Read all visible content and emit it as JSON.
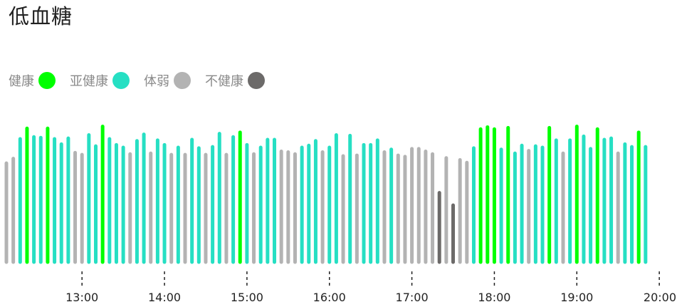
{
  "title": "低血糖",
  "legend": [
    {
      "label": "健康",
      "color": "#00ff00"
    },
    {
      "label": "亚健康",
      "color": "#26dfc3"
    },
    {
      "label": "体弱",
      "color": "#b3b3b3"
    },
    {
      "label": "不健康",
      "color": "#6c6a69"
    }
  ],
  "chart_data": {
    "type": "bar",
    "x_ticks": [
      "13:00",
      "14:00",
      "15:00",
      "16:00",
      "17:00",
      "18:00",
      "19:00",
      "20:00"
    ],
    "x_range": [
      "12:05",
      "20:02"
    ],
    "categories": [
      "健康",
      "亚健康",
      "体弱",
      "不健康"
    ],
    "bars": [
      {
        "time": "12:05",
        "value": 138,
        "status": "体弱"
      },
      {
        "time": "12:10",
        "value": 145,
        "status": "体弱"
      },
      {
        "time": "12:15",
        "value": 175,
        "status": "亚健康"
      },
      {
        "time": "12:20",
        "value": 191,
        "status": "健康"
      },
      {
        "time": "12:25",
        "value": 178,
        "status": "亚健康"
      },
      {
        "time": "12:30",
        "value": 177,
        "status": "亚健康"
      },
      {
        "time": "12:35",
        "value": 191,
        "status": "健康"
      },
      {
        "time": "12:40",
        "value": 175,
        "status": "亚健康"
      },
      {
        "time": "12:45",
        "value": 167,
        "status": "亚健康"
      },
      {
        "time": "12:50",
        "value": 176,
        "status": "亚健康"
      },
      {
        "time": "12:55",
        "value": 154,
        "status": "体弱"
      },
      {
        "time": "13:00",
        "value": 151,
        "status": "体弱"
      },
      {
        "time": "13:05",
        "value": 181,
        "status": "亚健康"
      },
      {
        "time": "13:10",
        "value": 164,
        "status": "亚健康"
      },
      {
        "time": "13:15",
        "value": 194,
        "status": "健康"
      },
      {
        "time": "13:20",
        "value": 175,
        "status": "亚健康"
      },
      {
        "time": "13:25",
        "value": 166,
        "status": "亚健康"
      },
      {
        "time": "13:30",
        "value": 162,
        "status": "亚健康"
      },
      {
        "time": "13:35",
        "value": 152,
        "status": "体弱"
      },
      {
        "time": "13:40",
        "value": 172,
        "status": "亚健康"
      },
      {
        "time": "13:45",
        "value": 182,
        "status": "亚健康"
      },
      {
        "time": "13:50",
        "value": 153,
        "status": "体弱"
      },
      {
        "time": "13:55",
        "value": 173,
        "status": "亚健康"
      },
      {
        "time": "14:00",
        "value": 166,
        "status": "亚健康"
      },
      {
        "time": "14:05",
        "value": 151,
        "status": "体弱"
      },
      {
        "time": "14:10",
        "value": 162,
        "status": "亚健康"
      },
      {
        "time": "14:15",
        "value": 151,
        "status": "体弱"
      },
      {
        "time": "14:20",
        "value": 174,
        "status": "亚健康"
      },
      {
        "time": "14:25",
        "value": 161,
        "status": "亚健康"
      },
      {
        "time": "14:30",
        "value": 151,
        "status": "体弱"
      },
      {
        "time": "14:35",
        "value": 163,
        "status": "亚健康"
      },
      {
        "time": "14:40",
        "value": 183,
        "status": "亚健康"
      },
      {
        "time": "14:45",
        "value": 151,
        "status": "体弱"
      },
      {
        "time": "14:50",
        "value": 178,
        "status": "亚健康"
      },
      {
        "time": "14:55",
        "value": 185,
        "status": "健康"
      },
      {
        "time": "15:00",
        "value": 166,
        "status": "亚健康"
      },
      {
        "time": "15:05",
        "value": 152,
        "status": "体弱"
      },
      {
        "time": "15:10",
        "value": 162,
        "status": "亚健康"
      },
      {
        "time": "15:15",
        "value": 174,
        "status": "亚健康"
      },
      {
        "time": "15:20",
        "value": 174,
        "status": "亚健康"
      },
      {
        "time": "15:25",
        "value": 156,
        "status": "体弱"
      },
      {
        "time": "15:30",
        "value": 155,
        "status": "体弱"
      },
      {
        "time": "15:35",
        "value": 152,
        "status": "体弱"
      },
      {
        "time": "15:40",
        "value": 162,
        "status": "亚健康"
      },
      {
        "time": "15:45",
        "value": 165,
        "status": "亚健康"
      },
      {
        "time": "15:50",
        "value": 172,
        "status": "亚健康"
      },
      {
        "time": "15:55",
        "value": 155,
        "status": "体弱"
      },
      {
        "time": "16:00",
        "value": 162,
        "status": "亚健康"
      },
      {
        "time": "16:05",
        "value": 181,
        "status": "亚健康"
      },
      {
        "time": "16:10",
        "value": 149,
        "status": "体弱"
      },
      {
        "time": "16:15",
        "value": 180,
        "status": "亚健康"
      },
      {
        "time": "16:20",
        "value": 150,
        "status": "体弱"
      },
      {
        "time": "16:25",
        "value": 166,
        "status": "亚健康"
      },
      {
        "time": "16:30",
        "value": 166,
        "status": "亚健康"
      },
      {
        "time": "16:35",
        "value": 173,
        "status": "亚健康"
      },
      {
        "time": "16:40",
        "value": 155,
        "status": "体弱"
      },
      {
        "time": "16:45",
        "value": 159,
        "status": "亚健康"
      },
      {
        "time": "16:50",
        "value": 150,
        "status": "体弱"
      },
      {
        "time": "16:55",
        "value": 148,
        "status": "体弱"
      },
      {
        "time": "17:00",
        "value": 160,
        "status": "体弱"
      },
      {
        "time": "17:05",
        "value": 160,
        "status": "体弱"
      },
      {
        "time": "17:10",
        "value": 156,
        "status": "体弱"
      },
      {
        "time": "17:15",
        "value": 152,
        "status": "体弱"
      },
      {
        "time": "17:20",
        "value": 93,
        "status": "不健康"
      },
      {
        "time": "17:25",
        "value": 146,
        "status": "体弱"
      },
      {
        "time": "17:30",
        "value": 74,
        "status": "不健康"
      },
      {
        "time": "17:35",
        "value": 143,
        "status": "体弱"
      },
      {
        "time": "17:40",
        "value": 139,
        "status": "体弱"
      },
      {
        "time": "17:45",
        "value": 161,
        "status": "亚健康"
      },
      {
        "time": "17:50",
        "value": 190,
        "status": "健康"
      },
      {
        "time": "17:55",
        "value": 193,
        "status": "健康"
      },
      {
        "time": "18:00",
        "value": 190,
        "status": "健康"
      },
      {
        "time": "18:05",
        "value": 159,
        "status": "亚健康"
      },
      {
        "time": "18:10",
        "value": 192,
        "status": "健康"
      },
      {
        "time": "18:15",
        "value": 153,
        "status": "亚健康"
      },
      {
        "time": "18:20",
        "value": 165,
        "status": "亚健康"
      },
      {
        "time": "18:25",
        "value": 157,
        "status": "体弱"
      },
      {
        "time": "18:30",
        "value": 164,
        "status": "亚健康"
      },
      {
        "time": "18:35",
        "value": 162,
        "status": "亚健康"
      },
      {
        "time": "18:40",
        "value": 192,
        "status": "健康"
      },
      {
        "time": "18:45",
        "value": 173,
        "status": "亚健康"
      },
      {
        "time": "18:50",
        "value": 153,
        "status": "体弱"
      },
      {
        "time": "18:55",
        "value": 173,
        "status": "亚健康"
      },
      {
        "time": "19:00",
        "value": 194,
        "status": "健康"
      },
      {
        "time": "19:05",
        "value": 179,
        "status": "亚健康"
      },
      {
        "time": "19:10",
        "value": 160,
        "status": "亚健康"
      },
      {
        "time": "19:15",
        "value": 190,
        "status": "健康"
      },
      {
        "time": "19:20",
        "value": 174,
        "status": "亚健康"
      },
      {
        "time": "19:25",
        "value": 176,
        "status": "亚健康"
      },
      {
        "time": "19:30",
        "value": 153,
        "status": "体弱"
      },
      {
        "time": "19:35",
        "value": 167,
        "status": "亚健康"
      },
      {
        "time": "19:40",
        "value": 163,
        "status": "亚健康"
      },
      {
        "time": "19:45",
        "value": 185,
        "status": "健康"
      },
      {
        "time": "19:50",
        "value": 163,
        "status": "亚健康"
      }
    ]
  }
}
